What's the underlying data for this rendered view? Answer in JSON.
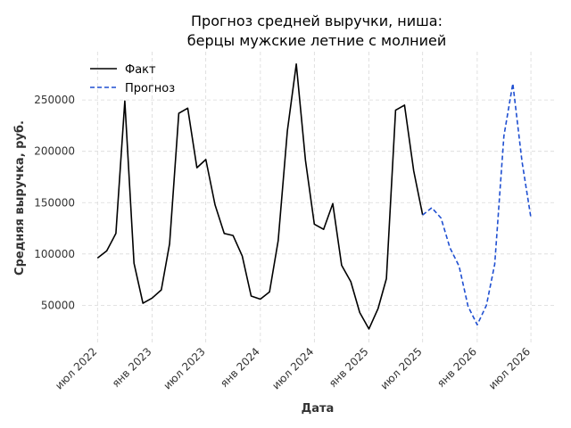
{
  "chart_data": {
    "type": "line",
    "title_lines": [
      "Прогноз средней выручки, ниша:",
      "берцы мужские летние с молнией"
    ],
    "xlabel": "Дата",
    "ylabel": "Средняя выручка, руб.",
    "x_ticks": [
      {
        "date": "2022-07-01",
        "label": "июл 2022"
      },
      {
        "date": "2023-01-01",
        "label": "янв 2023"
      },
      {
        "date": "2023-07-01",
        "label": "июл 2023"
      },
      {
        "date": "2024-01-01",
        "label": "янв 2024"
      },
      {
        "date": "2024-07-01",
        "label": "июл 2024"
      },
      {
        "date": "2025-01-01",
        "label": "янв 2025"
      },
      {
        "date": "2025-07-01",
        "label": "июл 2025"
      },
      {
        "date": "2026-01-01",
        "label": "янв 2026"
      },
      {
        "date": "2026-07-01",
        "label": "июл 2026"
      }
    ],
    "y_ticks": [
      {
        "value": 50000,
        "label": "50000"
      },
      {
        "value": 100000,
        "label": "100000"
      },
      {
        "value": 150000,
        "label": "150000"
      },
      {
        "value": 200000,
        "label": "200000"
      },
      {
        "value": 250000,
        "label": "250000"
      }
    ],
    "xlim": [
      "2022-05-10",
      "2026-09-20"
    ],
    "ylim": [
      13000,
      297000
    ],
    "grid": true,
    "legend_position": "top-left",
    "series": [
      {
        "name": "Факт",
        "color": "#000000",
        "dash": "solid",
        "x": [
          "2022-07-01",
          "2022-08-01",
          "2022-09-01",
          "2022-10-01",
          "2022-11-01",
          "2022-12-01",
          "2023-01-01",
          "2023-02-01",
          "2023-03-01",
          "2023-04-01",
          "2023-05-01",
          "2023-06-01",
          "2023-07-01",
          "2023-08-01",
          "2023-09-01",
          "2023-10-01",
          "2023-11-01",
          "2023-12-01",
          "2024-01-01",
          "2024-02-01",
          "2024-03-01",
          "2024-04-01",
          "2024-05-01",
          "2024-06-01",
          "2024-07-01",
          "2024-08-01",
          "2024-09-01",
          "2024-10-01",
          "2024-11-01",
          "2024-12-01",
          "2025-01-01",
          "2025-02-01",
          "2025-03-01",
          "2025-04-01",
          "2025-05-01",
          "2025-06-01",
          "2025-07-01"
        ],
        "y": [
          96000,
          103000,
          120000,
          249000,
          91000,
          52000,
          57000,
          65000,
          110000,
          237000,
          242000,
          184000,
          192000,
          148000,
          120000,
          118000,
          98000,
          59000,
          56000,
          63000,
          113000,
          220000,
          285000,
          191000,
          129000,
          124000,
          149000,
          89000,
          73000,
          43000,
          27000,
          47000,
          76000,
          240000,
          245000,
          181000,
          138000
        ]
      },
      {
        "name": "Прогноз",
        "color": "#1f4fd1",
        "dash": "dashed",
        "x": [
          "2025-07-01",
          "2025-08-01",
          "2025-09-01",
          "2025-10-01",
          "2025-11-01",
          "2025-12-01",
          "2026-01-01",
          "2026-02-01",
          "2026-03-01",
          "2026-04-01",
          "2026-05-01",
          "2026-06-01",
          "2026-07-01"
        ],
        "y": [
          138000,
          145000,
          135000,
          106000,
          88000,
          49000,
          31000,
          50000,
          90000,
          215000,
          266000,
          190000,
          135000
        ]
      }
    ]
  }
}
